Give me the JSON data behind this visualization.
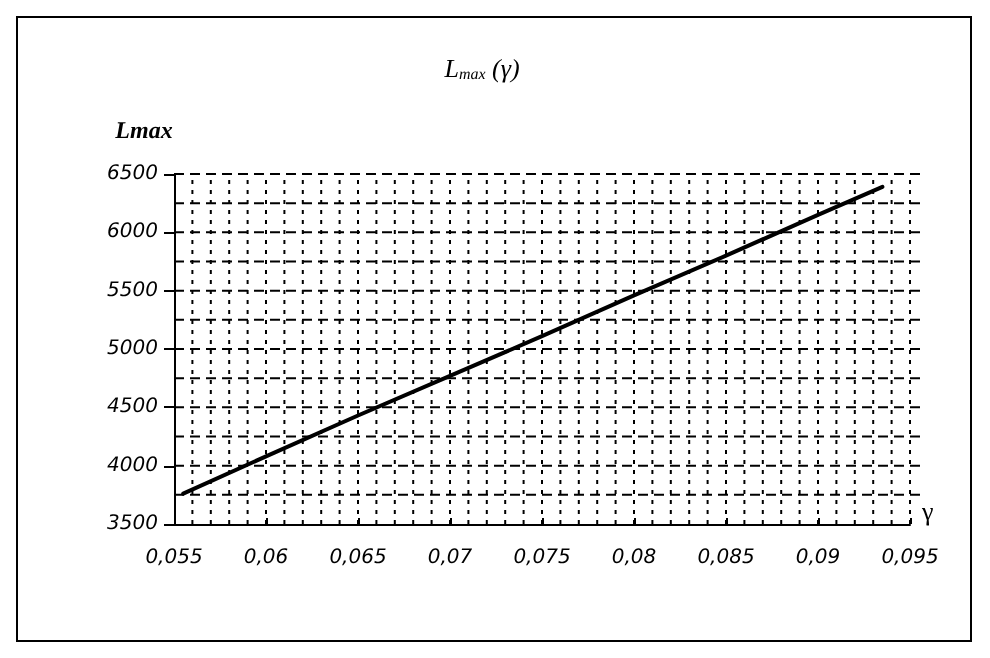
{
  "chart_data": {
    "type": "line",
    "title": "L$_{max}$ (γ)",
    "ylabel": "Lmax",
    "xlabel": "γ",
    "x": [
      0.0555,
      0.06,
      0.065,
      0.07,
      0.075,
      0.08,
      0.085,
      0.09,
      0.0935
    ],
    "series": [
      {
        "color": "#000000",
        "values": [
          3760,
          4080,
          4430,
          4770,
          5110,
          5460,
          5800,
          6150,
          6390
        ]
      }
    ],
    "xlim": [
      0.055,
      0.095
    ],
    "xticks": [
      {
        "value": 0.055,
        "label": "0,055"
      },
      {
        "value": 0.056,
        "label": null
      },
      {
        "value": 0.057,
        "label": null
      },
      {
        "value": 0.058,
        "label": null
      },
      {
        "value": 0.059,
        "label": null
      },
      {
        "value": 0.06,
        "label": "0,06"
      },
      {
        "value": 0.061,
        "label": null
      },
      {
        "value": 0.062,
        "label": null
      },
      {
        "value": 0.063,
        "label": null
      },
      {
        "value": 0.064,
        "label": null
      },
      {
        "value": 0.065,
        "label": "0,065"
      },
      {
        "value": 0.066,
        "label": null
      },
      {
        "value": 0.067,
        "label": null
      },
      {
        "value": 0.068,
        "label": null
      },
      {
        "value": 0.069,
        "label": null
      },
      {
        "value": 0.07,
        "label": "0,07"
      },
      {
        "value": 0.071,
        "label": null
      },
      {
        "value": 0.072,
        "label": null
      },
      {
        "value": 0.073,
        "label": null
      },
      {
        "value": 0.074,
        "label": null
      },
      {
        "value": 0.075,
        "label": "0,075"
      },
      {
        "value": 0.076,
        "label": null
      },
      {
        "value": 0.077,
        "label": null
      },
      {
        "value": 0.078,
        "label": null
      },
      {
        "value": 0.079,
        "label": null
      },
      {
        "value": 0.08,
        "label": "0,08"
      },
      {
        "value": 0.081,
        "label": null
      },
      {
        "value": 0.082,
        "label": null
      },
      {
        "value": 0.083,
        "label": null
      },
      {
        "value": 0.084,
        "label": null
      },
      {
        "value": 0.085,
        "label": "0,085"
      },
      {
        "value": 0.086,
        "label": null
      },
      {
        "value": 0.087,
        "label": null
      },
      {
        "value": 0.088,
        "label": null
      },
      {
        "value": 0.089,
        "label": null
      },
      {
        "value": 0.09,
        "label": "0,09"
      },
      {
        "value": 0.091,
        "label": null
      },
      {
        "value": 0.092,
        "label": null
      },
      {
        "value": 0.093,
        "label": null
      },
      {
        "value": 0.094,
        "label": null
      },
      {
        "value": 0.095,
        "label": "0,095"
      }
    ],
    "ylim": [
      3500,
      6500
    ],
    "yticks": [
      3500,
      {
        "value": 3750,
        "label": null
      },
      4000,
      {
        "value": 4250,
        "label": null
      },
      4500,
      {
        "value": 4750,
        "label": null
      },
      5000,
      {
        "value": 5250,
        "label": null
      },
      5500,
      {
        "value": 5750,
        "label": null
      },
      6000,
      {
        "value": 6250,
        "label": null
      },
      6500
    ],
    "grid": true,
    "marker": "none",
    "line_style": "solid"
  }
}
